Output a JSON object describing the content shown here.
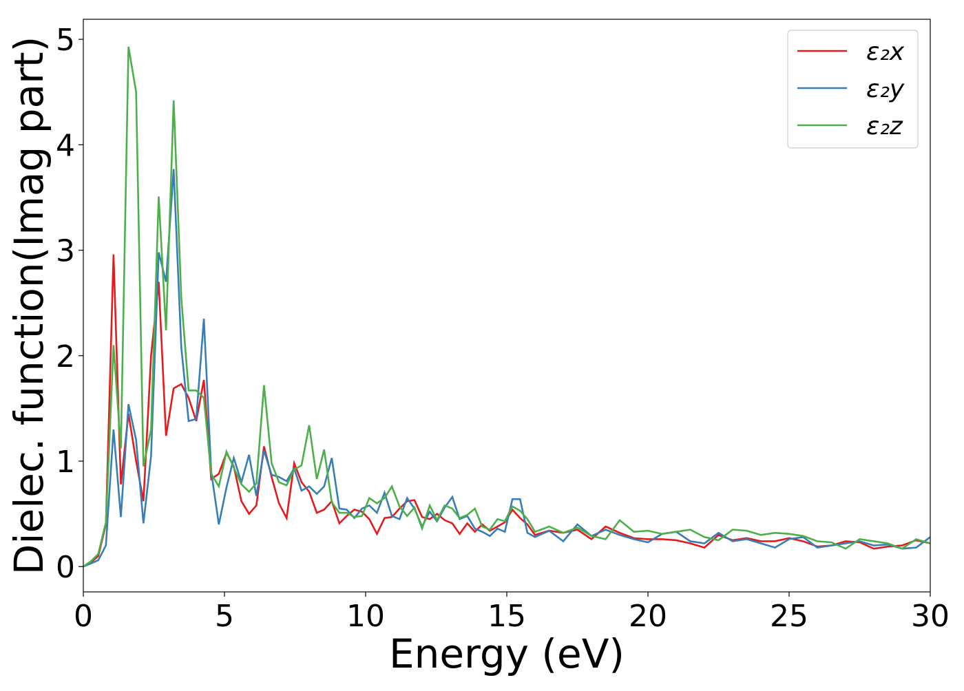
{
  "chart_data": {
    "type": "line",
    "xlabel": "Energy (eV)",
    "ylabel": "Dielec. function(Imag part)",
    "x": [
      0,
      0.27,
      0.53,
      0.8,
      1.07,
      1.33,
      1.6,
      1.87,
      2.13,
      2.4,
      2.67,
      2.93,
      3.2,
      3.47,
      3.73,
      4.0,
      4.27,
      4.53,
      4.8,
      5.07,
      5.33,
      5.6,
      5.87,
      6.13,
      6.4,
      6.67,
      6.93,
      7.2,
      7.47,
      7.73,
      8.0,
      8.27,
      8.53,
      8.8,
      9.07,
      9.33,
      9.6,
      9.87,
      10.13,
      10.4,
      10.67,
      10.93,
      11.2,
      11.47,
      11.73,
      12.0,
      12.27,
      12.53,
      12.8,
      13.07,
      13.33,
      13.6,
      13.87,
      14.13,
      14.4,
      14.67,
      14.93,
      15.2,
      15.47,
      15.73,
      16.0,
      16.5,
      17,
      17.5,
      18,
      18.5,
      19,
      19.5,
      20,
      20.5,
      21,
      21.5,
      22,
      22.5,
      23,
      23.5,
      24,
      24.5,
      25,
      25.5,
      26,
      26.5,
      27,
      27.5,
      28,
      28.5,
      29,
      29.5,
      30
    ],
    "series": [
      {
        "name": "ε₂x",
        "color": "#e41a1c",
        "values": [
          0,
          0.04,
          0.1,
          0.4,
          2.96,
          0.78,
          1.45,
          1.0,
          0.62,
          2.0,
          2.7,
          1.24,
          1.69,
          1.73,
          1.6,
          1.38,
          1.77,
          0.83,
          0.88,
          1.08,
          0.95,
          0.62,
          0.5,
          0.58,
          1.14,
          0.85,
          0.6,
          0.46,
          0.98,
          0.8,
          0.71,
          0.51,
          0.54,
          0.62,
          0.41,
          0.48,
          0.54,
          0.52,
          0.45,
          0.31,
          0.46,
          0.47,
          0.55,
          0.62,
          0.63,
          0.47,
          0.45,
          0.5,
          0.44,
          0.41,
          0.31,
          0.41,
          0.33,
          0.4,
          0.34,
          0.38,
          0.42,
          0.54,
          0.46,
          0.4,
          0.3,
          0.34,
          0.32,
          0.35,
          0.26,
          0.38,
          0.32,
          0.27,
          0.26,
          0.26,
          0.25,
          0.22,
          0.18,
          0.3,
          0.25,
          0.27,
          0.24,
          0.24,
          0.27,
          0.24,
          0.19,
          0.2,
          0.24,
          0.23,
          0.17,
          0.19,
          0.2,
          0.25,
          0.22
        ]
      },
      {
        "name": "ε₂y",
        "color": "#377eb8",
        "values": [
          0,
          0.03,
          0.06,
          0.2,
          1.3,
          0.47,
          1.54,
          1.2,
          0.41,
          1.05,
          2.98,
          2.7,
          3.77,
          2.08,
          1.38,
          1.4,
          2.35,
          0.9,
          0.4,
          0.75,
          1.03,
          0.8,
          1.06,
          0.67,
          1.1,
          0.87,
          0.85,
          0.81,
          0.93,
          0.72,
          0.76,
          0.69,
          0.76,
          1.03,
          0.55,
          0.54,
          0.46,
          0.55,
          0.58,
          0.51,
          0.7,
          0.48,
          0.45,
          0.65,
          0.55,
          0.38,
          0.52,
          0.43,
          0.56,
          0.66,
          0.45,
          0.48,
          0.36,
          0.33,
          0.29,
          0.36,
          0.33,
          0.64,
          0.64,
          0.32,
          0.28,
          0.34,
          0.24,
          0.4,
          0.29,
          0.35,
          0.3,
          0.26,
          0.23,
          0.31,
          0.33,
          0.24,
          0.22,
          0.32,
          0.24,
          0.26,
          0.22,
          0.18,
          0.26,
          0.28,
          0.18,
          0.2,
          0.22,
          0.24,
          0.2,
          0.21,
          0.17,
          0.18,
          0.28
        ]
      },
      {
        "name": "ε₂z",
        "color": "#4daf4a",
        "values": [
          0,
          0.05,
          0.12,
          0.42,
          2.1,
          1.12,
          4.93,
          4.5,
          0.95,
          1.3,
          3.51,
          2.24,
          4.42,
          2.55,
          1.67,
          1.67,
          1.6,
          0.88,
          0.76,
          1.09,
          0.94,
          0.78,
          0.71,
          0.79,
          1.72,
          0.98,
          0.8,
          0.77,
          0.92,
          0.96,
          1.34,
          0.83,
          1.11,
          0.61,
          0.51,
          0.51,
          0.47,
          0.48,
          0.65,
          0.6,
          0.65,
          0.76,
          0.57,
          0.48,
          0.56,
          0.36,
          0.58,
          0.44,
          0.58,
          0.55,
          0.46,
          0.49,
          0.55,
          0.38,
          0.35,
          0.45,
          0.43,
          0.57,
          0.53,
          0.45,
          0.33,
          0.38,
          0.32,
          0.37,
          0.29,
          0.26,
          0.44,
          0.33,
          0.34,
          0.31,
          0.33,
          0.35,
          0.28,
          0.25,
          0.35,
          0.34,
          0.3,
          0.32,
          0.31,
          0.29,
          0.24,
          0.23,
          0.17,
          0.26,
          0.24,
          0.22,
          0.17,
          0.26,
          0.22
        ]
      }
    ],
    "xlim": [
      0,
      30
    ],
    "xticks": [
      0,
      5,
      10,
      15,
      20,
      25,
      30
    ],
    "ylim": [
      -0.24,
      5.19
    ],
    "yticks": [
      0,
      1,
      2,
      3,
      4,
      5
    ],
    "grid": false,
    "legend": "upper right"
  }
}
